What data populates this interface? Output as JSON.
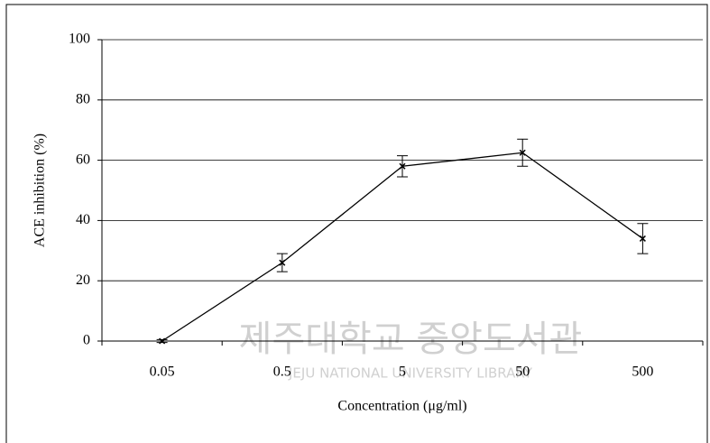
{
  "chart_data": {
    "type": "line",
    "xlabel": "Concentration (μg/ml)",
    "ylabel": "ACE  inhibition (%)",
    "categories": [
      "0.05",
      "0.5",
      "5",
      "50",
      "500"
    ],
    "series": [
      {
        "name": "ACE inhibition",
        "color": "#000000",
        "values": [
          0,
          26,
          58,
          62.5,
          34
        ],
        "errors": [
          0.5,
          3,
          3.5,
          4.5,
          5
        ]
      }
    ],
    "ylim": [
      0,
      100
    ],
    "yticks": [
      0,
      20,
      40,
      60,
      80,
      100
    ],
    "grid": true,
    "watermark": [
      "제주대학교 중앙도서관",
      "JEJU NATIONAL UNIVERSITY LIBRARY"
    ]
  }
}
